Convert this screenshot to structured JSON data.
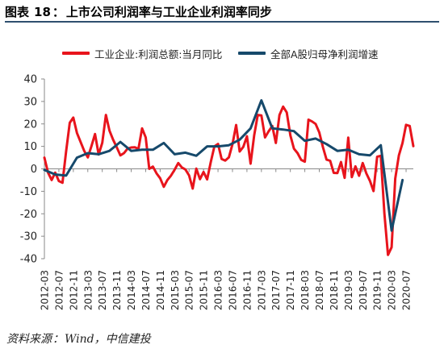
{
  "figure": {
    "label": "图表",
    "number": "18",
    "title": "上市公司利润率与工业企业利润率同步"
  },
  "source": {
    "label": "资料来源",
    "text": "Wind，中信建投"
  },
  "chart_data": {
    "type": "line",
    "ylim": [
      -40,
      40
    ],
    "yticks": [
      -40,
      -30,
      -20,
      -10,
      0,
      10,
      20,
      30,
      40
    ],
    "xticks": [
      "2012-03",
      "2012-07",
      "2012-11",
      "2013-03",
      "2013-07",
      "2013-11",
      "2014-03",
      "2014-07",
      "2014-11",
      "2015-03",
      "2015-07",
      "2015-11",
      "2016-03",
      "2016-07",
      "2016-11",
      "2017-03",
      "2017-07",
      "2017-11",
      "2018-03",
      "2018-07",
      "2018-11",
      "2019-03",
      "2019-07",
      "2019-11",
      "2020-03",
      "2020-07"
    ],
    "legend_position": "top",
    "grid": false,
    "series": [
      {
        "name": "工业企业:利润总额:当月同比",
        "color": "#e8141c",
        "x": [
          "2012-03",
          "2012-04",
          "2012-05",
          "2012-06",
          "2012-07",
          "2012-08",
          "2012-09",
          "2012-10",
          "2012-11",
          "2012-12",
          "2013-01",
          "2013-02",
          "2013-03",
          "2013-04",
          "2013-05",
          "2013-06",
          "2013-07",
          "2013-08",
          "2013-09",
          "2013-10",
          "2013-11",
          "2013-12",
          "2014-01",
          "2014-02",
          "2014-03",
          "2014-04",
          "2014-05",
          "2014-06",
          "2014-07",
          "2014-08",
          "2014-09",
          "2014-10",
          "2014-11",
          "2014-12",
          "2015-01",
          "2015-02",
          "2015-03",
          "2015-04",
          "2015-05",
          "2015-06",
          "2015-07",
          "2015-08",
          "2015-09",
          "2015-10",
          "2015-11",
          "2015-12",
          "2016-01",
          "2016-02",
          "2016-03",
          "2016-04",
          "2016-05",
          "2016-06",
          "2016-07",
          "2016-08",
          "2016-09",
          "2016-10",
          "2016-11",
          "2016-12",
          "2017-01",
          "2017-02",
          "2017-03",
          "2017-04",
          "2017-05",
          "2017-06",
          "2017-07",
          "2017-08",
          "2017-09",
          "2017-10",
          "2017-11",
          "2017-12",
          "2018-01",
          "2018-02",
          "2018-03",
          "2018-04",
          "2018-05",
          "2018-06",
          "2018-07",
          "2018-08",
          "2018-09",
          "2018-10",
          "2018-11",
          "2018-12",
          "2019-01",
          "2019-02",
          "2019-03",
          "2019-04",
          "2019-05",
          "2019-06",
          "2019-07",
          "2019-08",
          "2019-09",
          "2019-10",
          "2019-11",
          "2019-12",
          "2020-01",
          "2020-02",
          "2020-03",
          "2020-04",
          "2020-05",
          "2020-06",
          "2020-07",
          "2020-08",
          "2020-09"
        ],
        "values": [
          5.0,
          -1.7,
          -5.0,
          -1.7,
          -5.4,
          -6.2,
          7.8,
          20.5,
          22.8,
          16.0,
          12.0,
          8.0,
          5.1,
          10.0,
          15.5,
          6.4,
          11.6,
          24.0,
          17.0,
          13.0,
          9.6,
          6.0,
          7.0,
          9.0,
          9.5,
          9.6,
          8.9,
          18.0,
          14.0,
          0.0,
          1.0,
          -2.0,
          -4.2,
          -8.0,
          -5.0,
          -3.0,
          -0.4,
          2.6,
          0.6,
          -0.3,
          -2.9,
          -8.8,
          0.1,
          -4.6,
          -1.4,
          -4.7,
          3.0,
          10.0,
          11.1,
          4.4,
          3.7,
          5.1,
          11.0,
          19.5,
          7.7,
          9.8,
          14.5,
          2.3,
          15.0,
          24.0,
          23.8,
          14.0,
          16.7,
          19.1,
          11.5,
          24.0,
          27.7,
          25.1,
          14.9,
          9.0,
          7.0,
          4.0,
          3.2,
          21.9,
          21.1,
          20.0,
          16.2,
          9.7,
          4.1,
          3.6,
          -1.8,
          -1.9,
          3.0,
          -4.0,
          13.9,
          -3.7,
          1.1,
          -3.1,
          2.6,
          -2.0,
          -5.3,
          -9.9,
          5.4,
          5.8,
          -20.0,
          -38.3,
          -34.9,
          -4.3,
          6.0,
          11.5,
          19.6,
          19.1,
          10.1
        ]
      },
      {
        "name": "全部A股归母净利润增速",
        "color": "#16496b",
        "x": [
          "2012-03",
          "2012-06",
          "2012-09",
          "2012-12",
          "2013-03",
          "2013-06",
          "2013-09",
          "2013-12",
          "2014-03",
          "2014-06",
          "2014-09",
          "2014-12",
          "2015-03",
          "2015-06",
          "2015-09",
          "2015-12",
          "2016-03",
          "2016-06",
          "2016-09",
          "2016-12",
          "2017-03",
          "2017-06",
          "2017-09",
          "2017-12",
          "2018-03",
          "2018-06",
          "2018-09",
          "2018-12",
          "2019-03",
          "2019-06",
          "2019-09",
          "2019-12",
          "2020-03",
          "2020-06"
        ],
        "values": [
          -0.5,
          -2.5,
          -3.0,
          5.0,
          7.0,
          6.5,
          8.0,
          12.0,
          8.0,
          8.5,
          8.5,
          11.5,
          6.5,
          7.2,
          5.8,
          10.0,
          10.0,
          10.5,
          13.0,
          18.0,
          30.5,
          18.0,
          17.5,
          16.8,
          12.5,
          13.5,
          11.0,
          8.0,
          8.5,
          6.5,
          6.0,
          10.5,
          -27.5,
          -5.0
        ]
      }
    ]
  }
}
